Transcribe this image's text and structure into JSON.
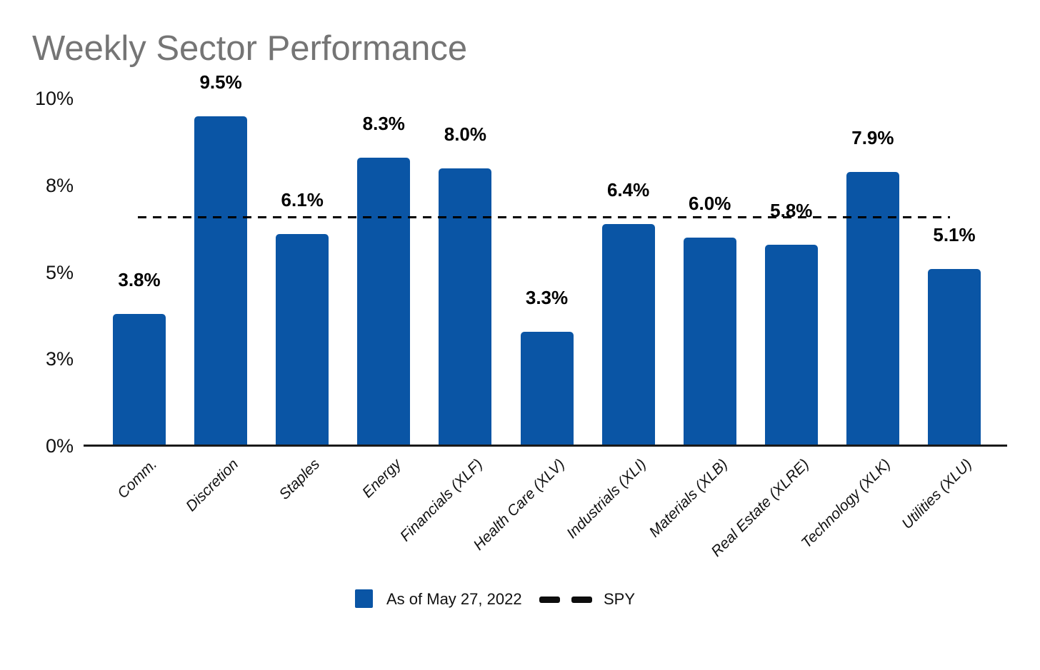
{
  "page": {
    "title": "Weekly Sector Performance"
  },
  "colors": {
    "bar": "#0a55a5",
    "title": "#757575",
    "axis": "#1a1a1a",
    "reference_line": "#000000"
  },
  "chart_data": {
    "type": "bar",
    "title": "Weekly Sector Performance",
    "xlabel": "",
    "ylabel": "",
    "ylim": [
      0,
      10
    ],
    "grid": false,
    "categories": [
      "Comm.",
      "Discretion",
      "Staples",
      "Energy",
      "Financials (XLF)",
      "Health Care (XLV)",
      "Industrials (XLI)",
      "Materials (XLB)",
      "Real Estate (XLRE)",
      "Technology (XLK)",
      "Utilities (XLU)"
    ],
    "series": [
      {
        "name": "As of May 27, 2022",
        "color": "#0a55a5",
        "values": [
          3.8,
          9.5,
          6.1,
          8.3,
          8.0,
          3.3,
          6.4,
          6.0,
          5.8,
          7.9,
          5.1
        ],
        "value_labels": [
          "3.8%",
          "9.5%",
          "6.1%",
          "8.3%",
          "8.0%",
          "3.3%",
          "6.4%",
          "6.0%",
          "5.8%",
          "7.9%",
          "5.1%"
        ]
      }
    ],
    "reference_line": {
      "name": "SPY",
      "value": 6.6,
      "style": "dashed",
      "color": "#000000"
    },
    "yticks": [
      {
        "value": 0,
        "label": "0%"
      },
      {
        "value": 2.5,
        "label": "3%"
      },
      {
        "value": 5,
        "label": "5%"
      },
      {
        "value": 7.5,
        "label": "8%"
      },
      {
        "value": 10,
        "label": "10%"
      }
    ],
    "legend": {
      "position": "bottom",
      "entries": [
        {
          "type": "square",
          "label": "As of May 27, 2022"
        },
        {
          "type": "dashed-line",
          "label": "SPY"
        }
      ]
    }
  }
}
